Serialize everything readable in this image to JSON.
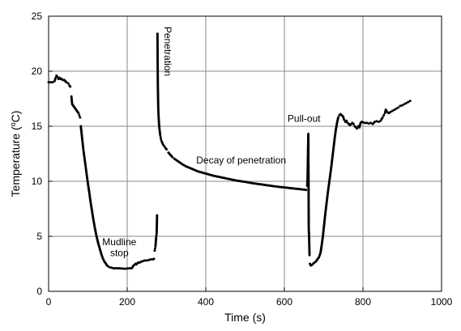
{
  "chart_data": {
    "type": "scatter",
    "title": "",
    "xlabel": "Time (s)",
    "ylabel_main": "Temperature (",
    "ylabel_deg": "o",
    "ylabel_unit": "C)",
    "xlim": [
      0,
      1000
    ],
    "ylim": [
      0,
      25
    ],
    "xticks": [
      0,
      200,
      400,
      600,
      800,
      1000
    ],
    "yticks": [
      0,
      5,
      10,
      15,
      20,
      25
    ],
    "grid": true,
    "marker_color": "#000000",
    "annotations": [
      {
        "text": "Penetration",
        "x": 295,
        "y": 21.8,
        "rotate": true
      },
      {
        "text": "Decay of penetration",
        "x": 490,
        "y": 11.6
      },
      {
        "text": "Pull-out",
        "x": 650,
        "y": 15.4
      },
      {
        "text": "Mudline",
        "x": 180,
        "y": 4.2
      },
      {
        "text": "stop",
        "x": 180,
        "y": 3.2
      }
    ],
    "segments": [
      {
        "x": [
          0,
          5,
          10,
          15,
          18,
          20,
          22,
          25,
          28,
          30,
          33,
          36,
          40,
          45,
          50,
          53,
          55
        ],
        "y": [
          19.0,
          19.0,
          19.0,
          19.1,
          19.4,
          19.6,
          19.5,
          19.3,
          19.4,
          19.3,
          19.3,
          19.2,
          19.2,
          19.0,
          18.9,
          18.7,
          18.6
        ]
      },
      {
        "x": [
          58,
          60,
          62,
          64,
          66,
          68,
          70,
          72,
          74,
          76,
          78,
          80
        ],
        "y": [
          17.7,
          17.0,
          16.9,
          16.8,
          16.7,
          16.6,
          16.5,
          16.4,
          16.3,
          16.2,
          16.0,
          15.8
        ]
      },
      {
        "x": [
          82,
          85,
          88,
          91,
          94,
          97,
          100,
          103,
          106,
          110,
          114,
          118,
          122,
          126,
          130,
          134,
          138,
          142,
          146,
          150,
          155,
          160,
          165,
          170,
          175,
          180,
          185,
          190,
          195,
          200,
          205,
          210,
          213
        ],
        "y": [
          15.0,
          14.0,
          13.0,
          12.2,
          11.4,
          10.6,
          9.8,
          9.1,
          8.3,
          7.4,
          6.5,
          5.7,
          5.0,
          4.4,
          3.9,
          3.4,
          3.0,
          2.7,
          2.5,
          2.3,
          2.2,
          2.15,
          2.1,
          2.1,
          2.1,
          2.1,
          2.08,
          2.07,
          2.05,
          2.08,
          2.1,
          2.1,
          2.15
        ]
      },
      {
        "x": [
          215,
          218,
          221,
          224,
          227,
          230,
          233,
          236,
          240,
          245,
          250,
          255,
          260,
          265,
          268
        ],
        "y": [
          2.3,
          2.4,
          2.5,
          2.45,
          2.6,
          2.6,
          2.65,
          2.7,
          2.75,
          2.8,
          2.8,
          2.85,
          2.9,
          2.9,
          2.95
        ]
      },
      {
        "x": [
          270,
          271,
          272,
          273,
          274,
          275,
          276
        ],
        "y": [
          3.7,
          3.9,
          4.1,
          4.6,
          5.0,
          5.3,
          6.9
        ]
      },
      {
        "x": [
          277,
          278,
          279,
          280,
          281,
          282,
          283,
          284,
          285,
          286,
          288,
          290,
          292,
          295,
          298,
          300
        ],
        "y": [
          23.4,
          18.7,
          16.6,
          15.8,
          15.2,
          14.8,
          14.5,
          14.2,
          14.0,
          13.8,
          13.6,
          13.45,
          13.3,
          13.15,
          13.0,
          12.9
        ]
      },
      {
        "x": [
          305,
          310,
          315,
          320,
          330,
          340,
          350,
          360,
          370,
          380,
          390,
          400,
          420,
          440,
          460,
          480,
          500,
          520,
          540,
          560,
          580,
          600,
          620,
          640,
          655
        ],
        "y": [
          12.6,
          12.4,
          12.2,
          12.05,
          11.8,
          11.55,
          11.35,
          11.2,
          11.05,
          10.9,
          10.8,
          10.7,
          10.5,
          10.35,
          10.2,
          10.05,
          9.95,
          9.82,
          9.72,
          9.62,
          9.52,
          9.44,
          9.36,
          9.28,
          9.22
        ]
      },
      {
        "x": [
          658,
          659,
          660,
          661,
          662,
          663,
          664
        ],
        "y": [
          9.6,
          10.3,
          12.5,
          14.3,
          5.8,
          4.8,
          3.3
        ]
      },
      {
        "x": [
          665,
          667,
          670,
          673,
          676,
          680,
          684,
          688,
          692,
          695,
          698,
          701,
          704,
          707,
          710,
          713,
          716,
          719,
          722,
          725,
          728,
          731,
          734,
          737,
          740
        ],
        "y": [
          2.5,
          2.35,
          2.4,
          2.5,
          2.6,
          2.7,
          2.9,
          3.1,
          3.5,
          4.2,
          5.0,
          6.0,
          7.0,
          7.9,
          8.8,
          9.6,
          10.4,
          11.2,
          12.1,
          13.0,
          13.9,
          14.7,
          15.3,
          15.8,
          16.0
        ]
      },
      {
        "x": [
          743,
          746,
          749,
          752,
          755,
          758,
          761,
          764,
          767,
          770,
          773,
          776,
          779,
          782,
          785,
          788,
          791,
          794,
          797,
          800,
          805,
          810,
          815,
          820,
          825,
          830,
          835,
          840,
          845,
          850,
          853,
          856,
          858,
          860,
          863,
          866,
          870,
          875,
          880,
          885,
          890,
          895,
          900,
          905,
          910,
          915,
          920
        ],
        "y": [
          16.1,
          16.0,
          15.9,
          15.6,
          15.4,
          15.5,
          15.3,
          15.2,
          15.1,
          15.2,
          15.3,
          15.2,
          15.0,
          14.9,
          14.8,
          15.0,
          14.9,
          15.3,
          15.4,
          15.35,
          15.3,
          15.3,
          15.25,
          15.3,
          15.2,
          15.4,
          15.45,
          15.4,
          15.5,
          15.8,
          16.0,
          16.2,
          16.5,
          16.4,
          16.25,
          16.2,
          16.3,
          16.4,
          16.5,
          16.6,
          16.7,
          16.85,
          16.9,
          17.0,
          17.1,
          17.2,
          17.3
        ]
      }
    ]
  }
}
